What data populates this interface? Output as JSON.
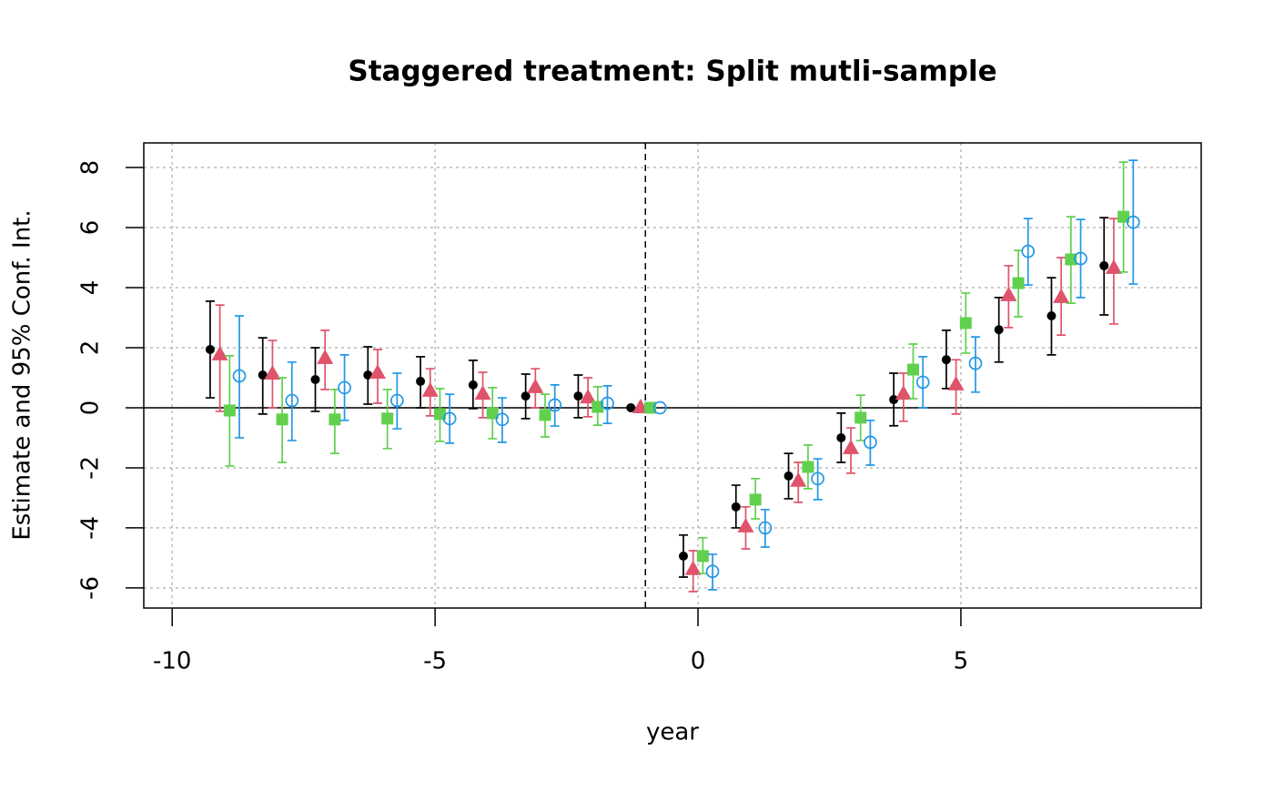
{
  "chart_data": {
    "type": "errorbar",
    "title": "Staggered treatment: Split mutli-sample",
    "xlabel": "year",
    "ylabel": "Estimate and 95% Conf. Int.",
    "x": [
      -9,
      -8,
      -7,
      -6,
      -5,
      -4,
      -3,
      -2,
      -1,
      0,
      1,
      2,
      3,
      4,
      5,
      6,
      7,
      8
    ],
    "series": [
      {
        "color": "#000000",
        "marker": "dot",
        "values": [
          1.94,
          1.09,
          0.94,
          1.09,
          0.88,
          0.76,
          0.39,
          0.39,
          0,
          -4.94,
          -3.3,
          -2.27,
          -1.0,
          0.27,
          1.6,
          2.6,
          3.06,
          4.73
        ],
        "lower": [
          0.33,
          -0.21,
          -0.12,
          0.12,
          0.0,
          -0.03,
          -0.36,
          -0.33,
          0,
          -5.64,
          -4.0,
          -3.03,
          -1.82,
          -0.6,
          0.64,
          1.52,
          1.76,
          3.09
        ],
        "upper": [
          3.55,
          2.33,
          2.0,
          2.03,
          1.7,
          1.58,
          1.12,
          1.09,
          0,
          -4.24,
          -2.58,
          -1.52,
          -0.18,
          1.15,
          2.58,
          3.67,
          4.33,
          6.33
        ]
      },
      {
        "color": "#DF536B",
        "marker": "triangle",
        "values": [
          1.76,
          1.12,
          1.64,
          1.15,
          0.55,
          0.45,
          0.67,
          0.33,
          0,
          -5.39,
          -3.97,
          -2.45,
          -1.36,
          0.45,
          0.76,
          3.73,
          3.67,
          4.64
        ],
        "lower": [
          -0.12,
          0,
          0.61,
          0.15,
          -0.27,
          -0.33,
          0,
          -0.3,
          0,
          -6.12,
          -4.7,
          -3.15,
          -2.18,
          -0.45,
          -0.21,
          2.67,
          2.42,
          2.79
        ],
        "upper": [
          3.42,
          2.24,
          2.58,
          1.94,
          1.3,
          1.18,
          1.3,
          1.0,
          0,
          -4.76,
          -3.3,
          -1.82,
          -0.67,
          1.15,
          1.6,
          4.73,
          5.0,
          6.3
        ]
      },
      {
        "color": "#61D04F",
        "marker": "square",
        "values": [
          -0.09,
          -0.39,
          -0.39,
          -0.36,
          -0.21,
          -0.18,
          -0.24,
          0.03,
          0,
          -4.94,
          -3.06,
          -1.97,
          -0.33,
          1.27,
          2.82,
          4.15,
          4.94,
          6.36
        ],
        "lower": [
          -1.94,
          -1.82,
          -1.52,
          -1.36,
          -1.12,
          -1.03,
          -0.97,
          -0.58,
          0,
          -5.52,
          -3.7,
          -2.7,
          -1.09,
          0.3,
          1.82,
          3.03,
          3.48,
          4.52
        ],
        "upper": [
          1.73,
          1.0,
          0.61,
          0.61,
          0.64,
          0.67,
          0.45,
          0.7,
          0,
          -4.33,
          -2.36,
          -1.24,
          0.42,
          2.12,
          3.82,
          5.24,
          6.36,
          8.18
        ]
      },
      {
        "color": "#2297E6",
        "marker": "circle-open",
        "values": [
          1.06,
          0.24,
          0.67,
          0.24,
          -0.36,
          -0.39,
          0.09,
          0.15,
          0,
          -5.45,
          -4.0,
          -2.36,
          -1.15,
          0.85,
          1.48,
          5.21,
          4.97,
          6.18
        ],
        "lower": [
          -1.0,
          -1.09,
          -0.42,
          -0.7,
          -1.18,
          -1.15,
          -0.61,
          -0.52,
          0,
          -6.06,
          -4.64,
          -3.06,
          -1.91,
          0,
          0.52,
          4.09,
          3.67,
          4.12
        ],
        "upper": [
          3.06,
          1.52,
          1.76,
          1.15,
          0.45,
          0.33,
          0.76,
          0.73,
          0,
          -4.88,
          -3.39,
          -1.7,
          -0.42,
          1.7,
          2.36,
          6.3,
          6.27,
          8.24
        ]
      }
    ],
    "xlim": [
      -10.54,
      9.57
    ],
    "ylim": [
      -6.67,
      8.82
    ],
    "xticks": [
      -10,
      -5,
      0,
      5
    ],
    "yticks": [
      -6,
      -4,
      -2,
      0,
      2,
      4,
      6,
      8
    ],
    "grid": true,
    "hline": 0,
    "vline": -1
  }
}
